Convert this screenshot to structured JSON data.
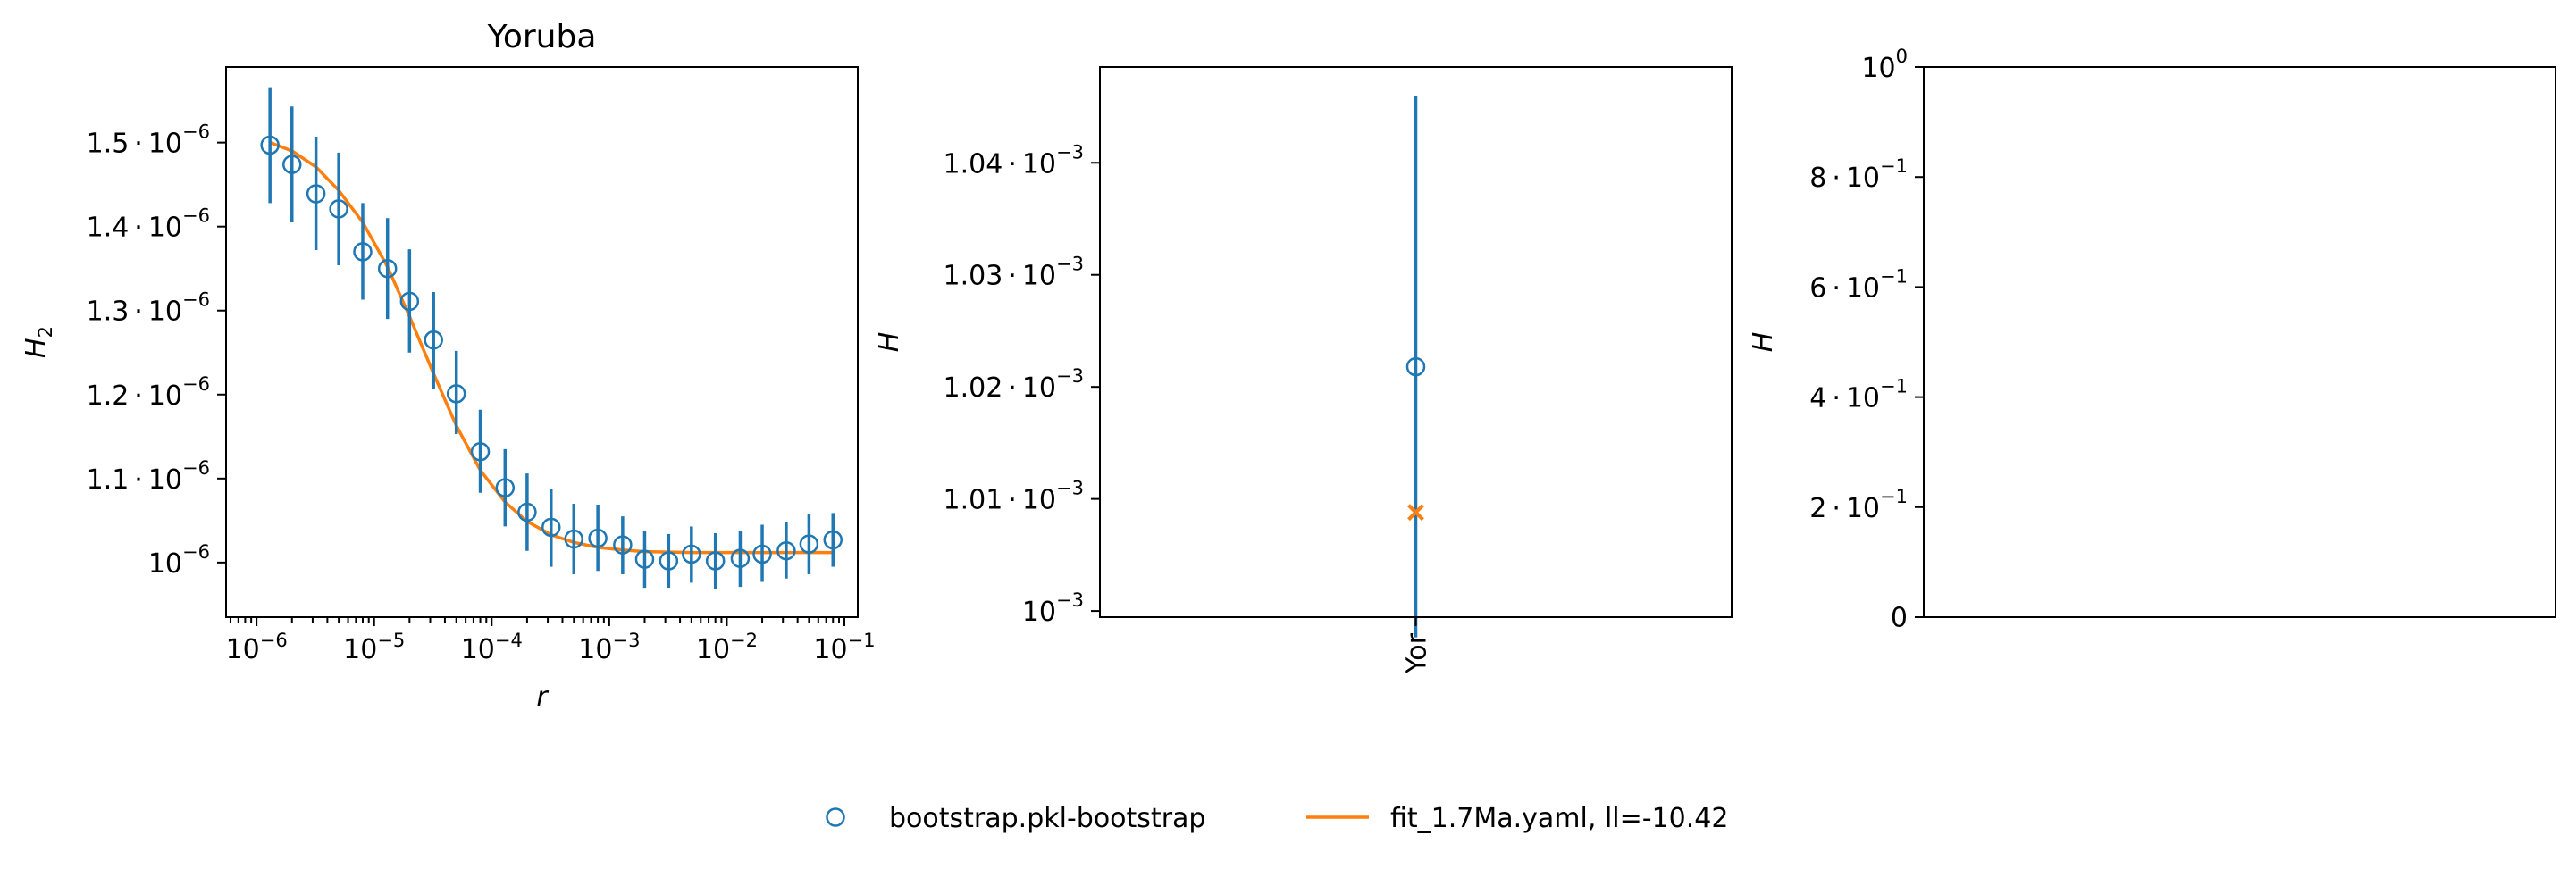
{
  "chart_data": [
    {
      "type": "scatter",
      "title": "Yoruba",
      "xlabel": "r",
      "ylabel": "H",
      "ylabel_sub": "2",
      "x_scale": "log",
      "xlim": [
        5.5e-07,
        0.13
      ],
      "ylim": [
        9.35e-07,
        1.59e-06
      ],
      "x_ticks": [
        {
          "value": 1e-06,
          "base": "10",
          "exp": "−6"
        },
        {
          "value": 1e-05,
          "base": "10",
          "exp": "−5"
        },
        {
          "value": 0.0001,
          "base": "10",
          "exp": "−4"
        },
        {
          "value": 0.001,
          "base": "10",
          "exp": "−3"
        },
        {
          "value": 0.01,
          "base": "10",
          "exp": "−2"
        },
        {
          "value": 0.1,
          "base": "10",
          "exp": "−1"
        }
      ],
      "y_ticks": [
        {
          "value": 1e-06,
          "mant": "",
          "exp": "−6"
        },
        {
          "value": 1.1e-06,
          "mant": "1.1",
          "exp": "−6"
        },
        {
          "value": 1.2e-06,
          "mant": "1.2",
          "exp": "−6"
        },
        {
          "value": 1.3e-06,
          "mant": "1.3",
          "exp": "−6"
        },
        {
          "value": 1.4e-06,
          "mant": "1.4",
          "exp": "−6"
        },
        {
          "value": 1.5e-06,
          "mant": "1.5",
          "exp": "−6"
        }
      ],
      "series": [
        {
          "name": "bootstrap.pkl-bootstrap",
          "kind": "errorbar",
          "points": [
            {
              "x": 1.3e-06,
              "y": 1.497e-06,
              "lo": 1.428e-06,
              "hi": 1.566e-06
            },
            {
              "x": 2e-06,
              "y": 1.474e-06,
              "lo": 1.405e-06,
              "hi": 1.543e-06
            },
            {
              "x": 3.2e-06,
              "y": 1.439e-06,
              "lo": 1.372e-06,
              "hi": 1.507e-06
            },
            {
              "x": 5e-06,
              "y": 1.421e-06,
              "lo": 1.354e-06,
              "hi": 1.488e-06
            },
            {
              "x": 8e-06,
              "y": 1.37e-06,
              "lo": 1.313e-06,
              "hi": 1.428e-06
            },
            {
              "x": 1.3e-05,
              "y": 1.35e-06,
              "lo": 1.29e-06,
              "hi": 1.41e-06
            },
            {
              "x": 2e-05,
              "y": 1.311e-06,
              "lo": 1.25e-06,
              "hi": 1.373e-06
            },
            {
              "x": 3.2e-05,
              "y": 1.265e-06,
              "lo": 1.207e-06,
              "hi": 1.322e-06
            },
            {
              "x": 5e-05,
              "y": 1.201e-06,
              "lo": 1.153e-06,
              "hi": 1.252e-06
            },
            {
              "x": 8e-05,
              "y": 1.132e-06,
              "lo": 1.083e-06,
              "hi": 1.182e-06
            },
            {
              "x": 0.00013,
              "y": 1.089e-06,
              "lo": 1.043e-06,
              "hi": 1.135e-06
            },
            {
              "x": 0.0002,
              "y": 1.06e-06,
              "lo": 1.014e-06,
              "hi": 1.106e-06
            },
            {
              "x": 0.00032,
              "y": 1.042e-06,
              "lo": 9.95e-07,
              "hi": 1.088e-06
            },
            {
              "x": 0.0005,
              "y": 1.028e-06,
              "lo": 9.86e-07,
              "hi": 1.07e-06
            },
            {
              "x": 0.0008,
              "y": 1.029e-06,
              "lo": 9.9e-07,
              "hi": 1.069e-06
            },
            {
              "x": 0.0013,
              "y": 1.021e-06,
              "lo": 9.86e-07,
              "hi": 1.055e-06
            },
            {
              "x": 0.002,
              "y": 1.004e-06,
              "lo": 9.7e-07,
              "hi": 1.038e-06
            },
            {
              "x": 0.0032,
              "y": 1.002e-06,
              "lo": 9.7e-07,
              "hi": 1.034e-06
            },
            {
              "x": 0.005,
              "y": 1.01e-06,
              "lo": 9.76e-07,
              "hi": 1.043e-06
            },
            {
              "x": 0.008,
              "y": 1.002e-06,
              "lo": 9.69e-07,
              "hi": 1.035e-06
            },
            {
              "x": 0.013,
              "y": 1.005e-06,
              "lo": 9.71e-07,
              "hi": 1.038e-06
            },
            {
              "x": 0.02,
              "y": 1.01e-06,
              "lo": 9.77e-07,
              "hi": 1.045e-06
            },
            {
              "x": 0.032,
              "y": 1.014e-06,
              "lo": 9.81e-07,
              "hi": 1.048e-06
            },
            {
              "x": 0.05,
              "y": 1.022e-06,
              "lo": 9.86e-07,
              "hi": 1.058e-06
            },
            {
              "x": 0.08,
              "y": 1.027e-06,
              "lo": 9.95e-07,
              "hi": 1.059e-06
            }
          ]
        },
        {
          "name": "fit_1.7Ma.yaml, ll=-10.42",
          "kind": "line",
          "points": [
            {
              "x": 1.3e-06,
              "y": 1.5e-06
            },
            {
              "x": 2e-06,
              "y": 1.49e-06
            },
            {
              "x": 3.2e-06,
              "y": 1.471e-06
            },
            {
              "x": 5e-06,
              "y": 1.443e-06
            },
            {
              "x": 8e-06,
              "y": 1.405e-06
            },
            {
              "x": 1.3e-05,
              "y": 1.352e-06
            },
            {
              "x": 2e-05,
              "y": 1.293e-06
            },
            {
              "x": 3.2e-05,
              "y": 1.225e-06
            },
            {
              "x": 5e-05,
              "y": 1.163e-06
            },
            {
              "x": 8e-05,
              "y": 1.11e-06
            },
            {
              "x": 0.00013,
              "y": 1.072e-06
            },
            {
              "x": 0.0002,
              "y": 1.049e-06
            },
            {
              "x": 0.00032,
              "y": 1.033e-06
            },
            {
              "x": 0.0005,
              "y": 1.024e-06
            },
            {
              "x": 0.0008,
              "y": 1.018e-06
            },
            {
              "x": 0.0013,
              "y": 1.015e-06
            },
            {
              "x": 0.002,
              "y": 1.013e-06
            },
            {
              "x": 0.005,
              "y": 1.012e-06
            },
            {
              "x": 0.02,
              "y": 1.012e-06
            },
            {
              "x": 0.08,
              "y": 1.012e-06
            }
          ]
        }
      ]
    },
    {
      "type": "scatter",
      "title": "",
      "xlabel": "",
      "ylabel": "H",
      "categories": [
        "Yor"
      ],
      "ylim": [
        0.00099945,
        0.00104855
      ],
      "y_ticks": [
        {
          "value": 0.001,
          "mant": "",
          "exp": "−3"
        },
        {
          "value": 0.00101,
          "mant": "1.01",
          "exp": "−3"
        },
        {
          "value": 0.00102,
          "mant": "1.02",
          "exp": "−3"
        },
        {
          "value": 0.00103,
          "mant": "1.03",
          "exp": "−3"
        },
        {
          "value": 0.00104,
          "mant": "1.04",
          "exp": "−3"
        }
      ],
      "data_point": {
        "category": "Yor",
        "y": 0.0010218,
        "lo": 0.00099765,
        "hi": 0.001046
      },
      "fit_point": {
        "category": "Yor",
        "y": 0.0010088
      }
    },
    {
      "type": "scatter",
      "title": "",
      "xlabel": "",
      "ylabel": "H",
      "ylim": [
        0,
        1
      ],
      "y_ticks": [
        {
          "value": 0,
          "mant": "0",
          "exp": ""
        },
        {
          "value": 0.2,
          "mant": "2",
          "exp": "−1"
        },
        {
          "value": 0.4,
          "mant": "4",
          "exp": "−1"
        },
        {
          "value": 0.6,
          "mant": "6",
          "exp": "−1"
        },
        {
          "value": 0.8,
          "mant": "8",
          "exp": "−1"
        },
        {
          "value": 1.0,
          "mant": "",
          "exp": "0"
        }
      ],
      "series": []
    }
  ],
  "legend": {
    "placement": "bottom-center",
    "entries": [
      {
        "label": "bootstrap.pkl-bootstrap",
        "marker": "circle"
      },
      {
        "label": "fit_1.7Ma.yaml, ll=-10.42",
        "marker": "line"
      }
    ]
  },
  "colors": {
    "data": "#1f77b4",
    "fit": "#ff7f0e",
    "axes": "#000000"
  }
}
